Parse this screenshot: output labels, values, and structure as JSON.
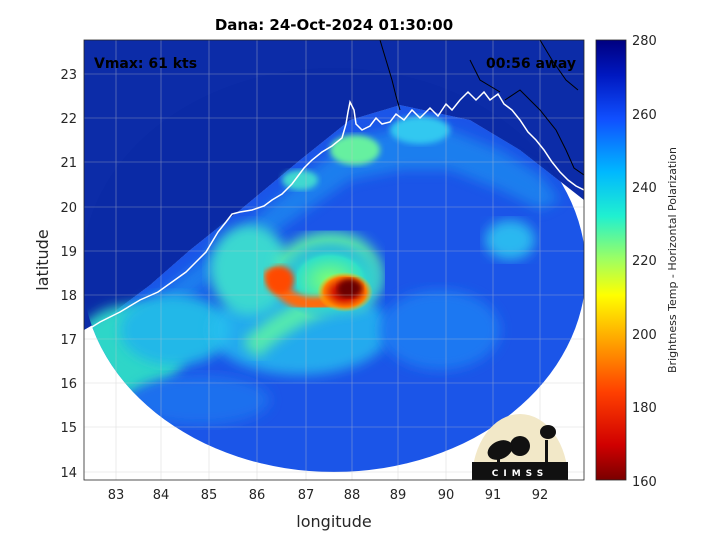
{
  "title": "Dana: 24-Oct-2024 01:30:00",
  "vmax": "Vmax: 61 kts",
  "away": "00:56 away",
  "xlabel": "longitude",
  "ylabel": "latitude",
  "x_ticks": [
    "83",
    "84",
    "85",
    "86",
    "87",
    "88",
    "89",
    "90",
    "91",
    "92"
  ],
  "y_ticks": [
    "23",
    "22",
    "21",
    "20",
    "19",
    "18",
    "17",
    "16",
    "15",
    "14"
  ],
  "colorbar": {
    "label": "Brightness Temp - Horizontal Polarization",
    "ticks": [
      "280",
      "260",
      "240",
      "220",
      "200",
      "180",
      "160"
    ],
    "range": [
      160,
      280
    ]
  },
  "logo": {
    "text": "CIMSS"
  },
  "colors": {
    "background_cold": "#0c2ca8",
    "coast": "#ffffff",
    "frame": "#000000"
  }
}
